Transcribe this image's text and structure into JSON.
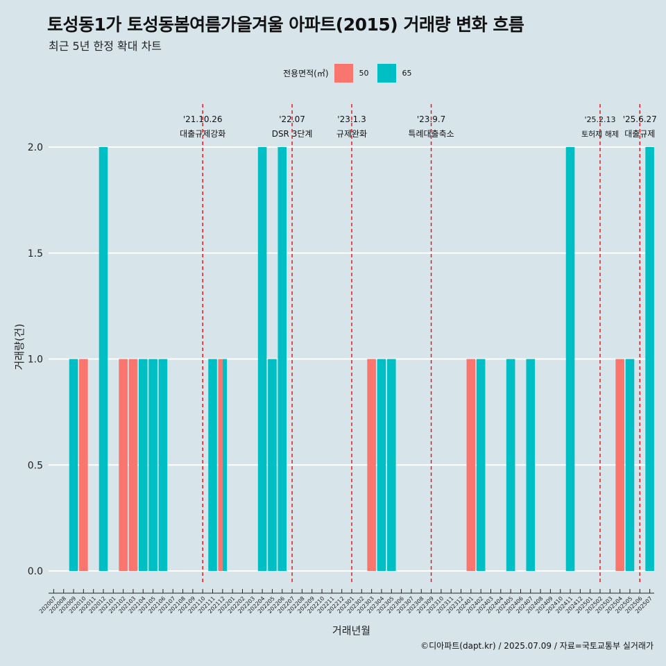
{
  "header": {
    "title": "토성동1가 토성동봄여름가을겨울 아파트(2015) 거래량 변화 흐름",
    "subtitle": "최근 5년 한정 확대 차트"
  },
  "legend": {
    "title": "전용면적(㎡)",
    "items": [
      {
        "label": "50",
        "color": "#f8766d"
      },
      {
        "label": "65",
        "color": "#00bfc4"
      }
    ]
  },
  "caption": "©디아파트(dapt.kr) / 2025.07.09 / 자료=국토교통부 실거래가",
  "chart_data": {
    "type": "bar",
    "title": "토성동1가 토성동봄여름가을겨울 아파트(2015) 거래량 변화 흐름",
    "subtitle": "최근 5년 한정 확대 차트",
    "xlabel": "거래년월",
    "ylabel": "거래량(건)",
    "ylim": [
      0,
      2
    ],
    "yticks": [
      "0.0",
      "0.5",
      "1.0",
      "1.5",
      "2.0"
    ],
    "grid": true,
    "legend_position": "top",
    "categories": [
      "202007",
      "202008",
      "202009",
      "202010",
      "202011",
      "202012",
      "202101",
      "202102",
      "202103",
      "202104",
      "202105",
      "202106",
      "202107",
      "202108",
      "202109",
      "202110",
      "202111",
      "202112",
      "202201",
      "202202",
      "202203",
      "202204",
      "202205",
      "202206",
      "202207",
      "202208",
      "202209",
      "202210",
      "202211",
      "202212",
      "202301",
      "202302",
      "202303",
      "202304",
      "202305",
      "202306",
      "202307",
      "202308",
      "202309",
      "202310",
      "202311",
      "202312",
      "202401",
      "202402",
      "202403",
      "202404",
      "202405",
      "202406",
      "202407",
      "202408",
      "202409",
      "202410",
      "202411",
      "202412",
      "202501",
      "202502",
      "202503",
      "202504",
      "202505",
      "202506",
      "202507"
    ],
    "series": [
      {
        "name": "50",
        "color": "#f8766d",
        "points": [
          {
            "x": "202010",
            "y": 1
          },
          {
            "x": "202102",
            "y": 1
          },
          {
            "x": "202103",
            "y": 1
          },
          {
            "x": "202112",
            "y": 1
          },
          {
            "x": "202303",
            "y": 1
          },
          {
            "x": "202401",
            "y": 1
          },
          {
            "x": "202504",
            "y": 1
          }
        ]
      },
      {
        "name": "65",
        "color": "#00bfc4",
        "points": [
          {
            "x": "202009",
            "y": 1
          },
          {
            "x": "202012",
            "y": 2
          },
          {
            "x": "202104",
            "y": 1
          },
          {
            "x": "202105",
            "y": 1
          },
          {
            "x": "202106",
            "y": 1
          },
          {
            "x": "202111",
            "y": 1
          },
          {
            "x": "202112",
            "y": 1
          },
          {
            "x": "202204",
            "y": 2
          },
          {
            "x": "202205",
            "y": 1
          },
          {
            "x": "202206",
            "y": 2
          },
          {
            "x": "202304",
            "y": 1
          },
          {
            "x": "202305",
            "y": 1
          },
          {
            "x": "202402",
            "y": 1
          },
          {
            "x": "202405",
            "y": 1
          },
          {
            "x": "202407",
            "y": 1
          },
          {
            "x": "202411",
            "y": 2
          },
          {
            "x": "202505",
            "y": 1
          },
          {
            "x": "202507",
            "y": 2
          }
        ]
      }
    ],
    "annotations": [
      {
        "x": "202110",
        "date": "'21.10.26",
        "label": "대출규제강화"
      },
      {
        "x": "202207",
        "date": "'22.07",
        "label": "DSR 3단계"
      },
      {
        "x": "202301",
        "date": "'23.1.3",
        "label": "규제완화"
      },
      {
        "x": "202309",
        "date": "'23.9.7",
        "label": "특례대출축소"
      },
      {
        "x": "202502",
        "date": "'25.2.13",
        "label": "토허제 해제"
      },
      {
        "x": "202506",
        "date": "'25.6.27",
        "label": "대출규제"
      }
    ]
  }
}
